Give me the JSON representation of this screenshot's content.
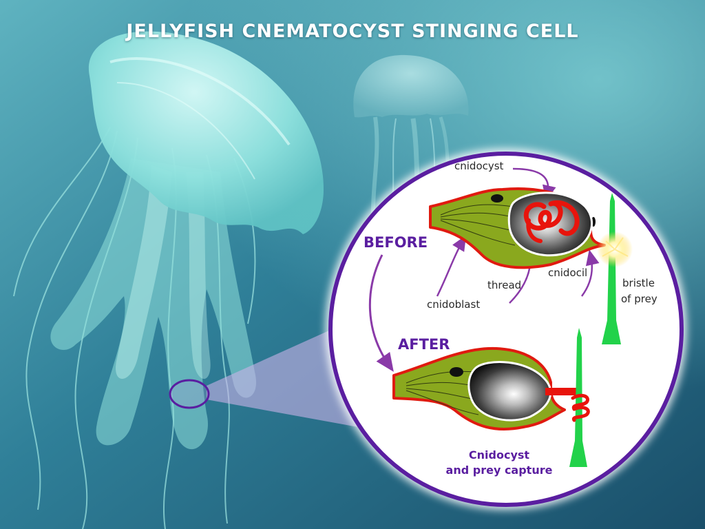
{
  "title": "JELLYFISH CNEMATOCYST STINGING CELL",
  "stages": {
    "before": "BEFORE",
    "after": "AFTER"
  },
  "labels": {
    "cnidocyst": "cnidocyst",
    "cnidoblast": "cnidoblast",
    "thread": "thread",
    "cnidocil": "cnidocil",
    "bristle_line1": "bristle",
    "bristle_line2": "of prey"
  },
  "caption": {
    "line1": "Cnidocyst",
    "line2": "and prey capture"
  },
  "colors": {
    "ocean_dark": "#1e5570",
    "ocean_light": "#6fc6cc",
    "jellyfish": "#8ee3e0",
    "magnifier_ring": "#5a1ea0",
    "stage_label": "#5a1ea0",
    "cell_fill": "#8aa81e",
    "cell_outline": "#e01a10",
    "thread": "#e8140c",
    "bristle": "#22d24a",
    "arrow": "#8a3aa8"
  }
}
